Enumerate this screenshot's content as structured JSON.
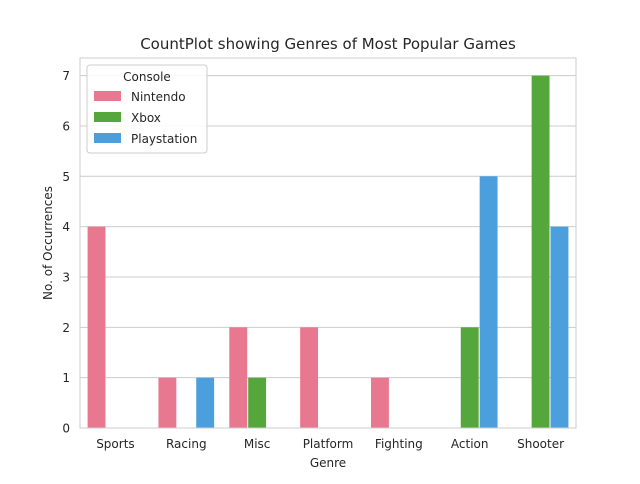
{
  "chart_data": {
    "type": "bar",
    "title": "CountPlot showing Genres of Most Popular Games",
    "xlabel": "Genre",
    "ylabel": "No. of Occurrences",
    "categories": [
      "Sports",
      "Racing",
      "Misc",
      "Platform",
      "Fighting",
      "Action",
      "Shooter"
    ],
    "series": [
      {
        "name": "Nintendo",
        "color": "#e8788f",
        "values": [
          4,
          1,
          2,
          2,
          1,
          0,
          0
        ]
      },
      {
        "name": "Xbox",
        "color": "#55a73c",
        "values": [
          0,
          0,
          1,
          0,
          0,
          2,
          7
        ]
      },
      {
        "name": "Playstation",
        "color": "#4b9fdc",
        "values": [
          0,
          1,
          0,
          0,
          0,
          5,
          4
        ]
      }
    ],
    "ylim": [
      0,
      7.35
    ],
    "yticks": [
      0,
      1,
      2,
      3,
      4,
      5,
      6,
      7
    ],
    "grid": true,
    "legend": {
      "title": "Console",
      "placement": "top-left"
    }
  }
}
